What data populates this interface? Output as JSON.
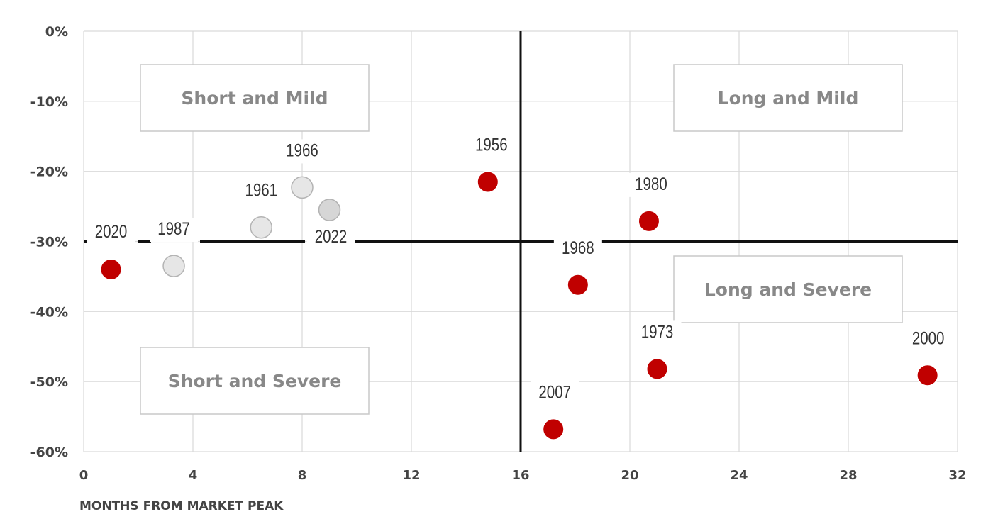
{
  "chart_data": {
    "type": "scatter",
    "xlabel": "MONTHS FROM MARKET PEAK",
    "ylabel": "",
    "xlim": [
      0,
      32
    ],
    "ylim": [
      -60,
      0
    ],
    "x_ticks": [
      0,
      4,
      8,
      12,
      16,
      20,
      24,
      28,
      32
    ],
    "y_ticks": [
      0,
      -10,
      -20,
      -30,
      -40,
      -50,
      -60
    ],
    "x_tick_labels": [
      "0",
      "4",
      "8",
      "12",
      "16",
      "20",
      "24",
      "28",
      "32"
    ],
    "y_tick_labels": [
      "0%",
      "-10%",
      "-20%",
      "-30%",
      "-40%",
      "-50%",
      "-60%"
    ],
    "grid": true,
    "divider_lines": {
      "x": 16,
      "y": -30
    },
    "quadrants": [
      {
        "label": "Short and Mild",
        "position": "top-left"
      },
      {
        "label": "Long and Mild",
        "position": "top-right"
      },
      {
        "label": "Short and Severe",
        "position": "bottom-left"
      },
      {
        "label": "Long and Severe",
        "position": "middle-right"
      }
    ],
    "points": [
      {
        "label": "2020",
        "x": 1.0,
        "y": -34,
        "color": "#c00000"
      },
      {
        "label": "1987",
        "x": 3.3,
        "y": -33.5,
        "color": "#e6e6e6"
      },
      {
        "label": "1961",
        "x": 6.5,
        "y": -28,
        "color": "#e6e6e6"
      },
      {
        "label": "1966",
        "x": 8.0,
        "y": -22.3,
        "color": "#e6e6e6"
      },
      {
        "label": "2022",
        "x": 9.0,
        "y": -25.5,
        "color": "#d6d6d6"
      },
      {
        "label": "1956",
        "x": 14.8,
        "y": -21.5,
        "color": "#c00000"
      },
      {
        "label": "2007",
        "x": 17.2,
        "y": -56.8,
        "color": "#c00000"
      },
      {
        "label": "1968",
        "x": 18.1,
        "y": -36.2,
        "color": "#c00000"
      },
      {
        "label": "1980",
        "x": 20.7,
        "y": -27.1,
        "color": "#c00000"
      },
      {
        "label": "1973",
        "x": 21.0,
        "y": -48.2,
        "color": "#c00000"
      },
      {
        "label": "2000",
        "x": 30.9,
        "y": -49.1,
        "color": "#c00000"
      }
    ]
  }
}
